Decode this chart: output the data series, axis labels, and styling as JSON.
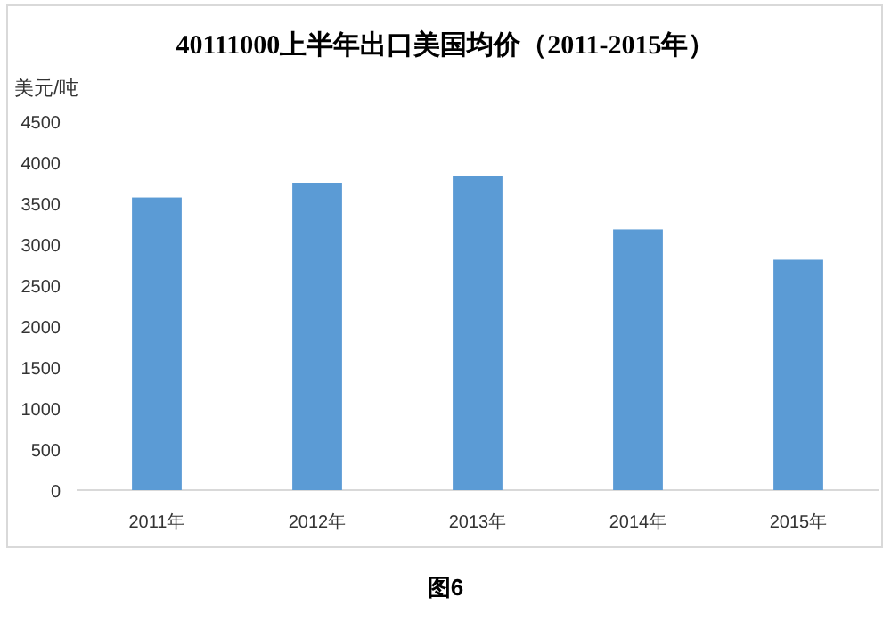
{
  "chart_data": {
    "type": "bar",
    "title": "40111000上半年出口美国均价（2011-2015年）",
    "ylabel": "美元/吨",
    "categories": [
      "2011年",
      "2012年",
      "2013年",
      "2014年",
      "2015年"
    ],
    "values": [
      3570,
      3750,
      3830,
      3180,
      2810
    ],
    "color": "#5b9bd5",
    "ylim": [
      0,
      4500
    ],
    "yticks": [
      0,
      500,
      1000,
      1500,
      2000,
      2500,
      3000,
      3500,
      4000,
      4500
    ],
    "grid": false,
    "annotations": [
      "图6"
    ]
  }
}
